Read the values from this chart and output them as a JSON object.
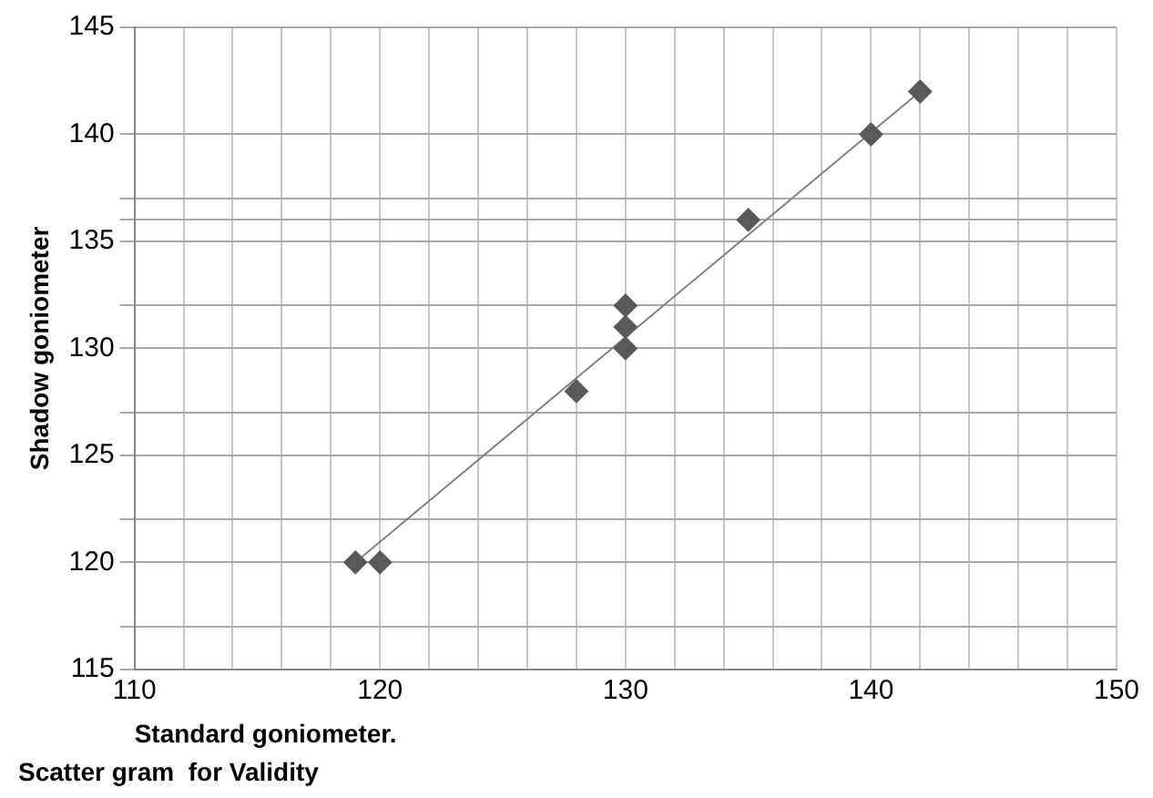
{
  "chart_data": {
    "type": "scatter",
    "title": "Scatter gram  for Validity",
    "xlabel": "Standard goniometer.",
    "ylabel": "Shadow goniometer",
    "series": [
      {
        "color": "#595959",
        "x": [
          119,
          120,
          128,
          130,
          130,
          130,
          135,
          140,
          142
        ],
        "values": [
          120,
          120,
          128,
          130,
          131,
          132,
          136,
          140,
          142
        ],
        "marker": "diamond"
      },
      {
        "type": "line",
        "color": "#808080",
        "x": [
          119,
          142
        ],
        "values": [
          120,
          142
        ],
        "marker": "none"
      }
    ],
    "xlim": [
      110,
      150
    ],
    "ylim": [
      115,
      145
    ],
    "xticks": [
      110,
      {
        "value": 112,
        "label": null
      },
      {
        "value": 114,
        "label": null
      },
      {
        "value": 116,
        "label": null
      },
      {
        "value": 118,
        "label": null
      },
      120,
      {
        "value": 122,
        "label": null
      },
      {
        "value": 124,
        "label": null
      },
      {
        "value": 126,
        "label": null
      },
      {
        "value": 128,
        "label": null
      },
      130,
      {
        "value": 132,
        "label": null
      },
      {
        "value": 134,
        "label": null
      },
      {
        "value": 136,
        "label": null
      },
      {
        "value": 138,
        "label": null
      },
      140,
      {
        "value": 142,
        "label": null
      },
      {
        "value": 144,
        "label": null
      },
      {
        "value": 146,
        "label": null
      },
      {
        "value": 148,
        "label": null
      },
      150
    ],
    "yticks": [
      115,
      {
        "value": 117,
        "label": null
      },
      120,
      {
        "value": 122,
        "label": null
      },
      125,
      {
        "value": 127,
        "label": null
      },
      130,
      {
        "value": 132,
        "label": null
      },
      135,
      {
        "value": 136,
        "label": null
      },
      {
        "value": 137,
        "label": null
      },
      140,
      145
    ],
    "grid": true,
    "legend": false
  }
}
